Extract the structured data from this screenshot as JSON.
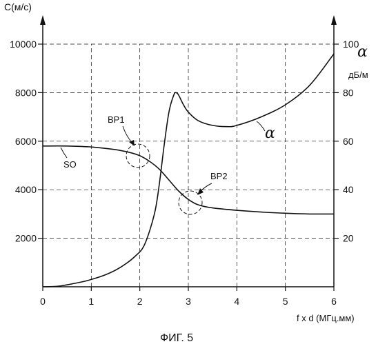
{
  "figure_caption": "ФИГ. 5",
  "chart_data": {
    "type": "line",
    "y_left_label": "C(м/с)",
    "y_right_symbol": "α",
    "y_right_unit": "дБ/м",
    "x_label": "f x d (МГц.мм)",
    "x_ticks": [
      "0",
      "1",
      "2",
      "3",
      "4",
      "5",
      "6"
    ],
    "y_left_ticks": [
      "2000",
      "4000",
      "6000",
      "8000",
      "10000"
    ],
    "y_right_ticks": [
      "20",
      "40",
      "60",
      "80",
      "100"
    ],
    "xlim": [
      0,
      6
    ],
    "ylim_left": [
      0,
      10000
    ],
    "ylim_right": [
      0,
      100
    ],
    "grid": "dashed",
    "series": [
      {
        "name": "SO",
        "axis": "left",
        "x": [
          0,
          0.5,
          1.0,
          1.5,
          1.8,
          2.0,
          2.2,
          2.4,
          2.6,
          2.8,
          3.0,
          3.2,
          3.5,
          4.0,
          4.5,
          5.0,
          5.5,
          6.0
        ],
        "y": [
          5800,
          5800,
          5760,
          5650,
          5530,
          5400,
          5170,
          4850,
          4400,
          3950,
          3600,
          3380,
          3250,
          3150,
          3080,
          3030,
          3000,
          3000
        ]
      },
      {
        "name": "α",
        "axis": "right",
        "x": [
          0,
          0.3,
          0.5,
          0.8,
          1.0,
          1.3,
          1.6,
          1.9,
          2.1,
          2.3,
          2.4,
          2.5,
          2.6,
          2.7,
          2.75,
          2.8,
          2.9,
          3.0,
          3.2,
          3.5,
          3.8,
          4.0,
          4.5,
          5.0,
          5.5,
          6.0
        ],
        "y": [
          0,
          0.2,
          0.8,
          2,
          3,
          5,
          8,
          12.5,
          17.5,
          30,
          42,
          58,
          72,
          79,
          80,
          79,
          75,
          72,
          68.5,
          66.5,
          66,
          66.5,
          70,
          75,
          83,
          96
        ]
      }
    ],
    "annotations": [
      {
        "label": "BP1",
        "x": 2.0,
        "y_left": 5400
      },
      {
        "label": "BP2",
        "x": 3.05,
        "y_left": 3500
      },
      {
        "label": "SO",
        "series": "SO"
      },
      {
        "label": "α",
        "series": "α"
      }
    ]
  }
}
